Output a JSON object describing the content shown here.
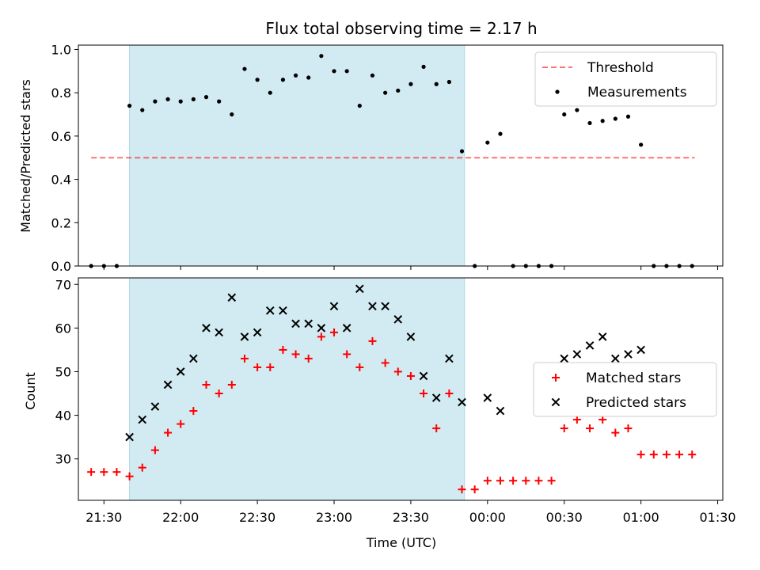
{
  "title": "Flux total observing time = 2.17 h",
  "colors": {
    "shade": "#add8e6",
    "threshold": "#ff0000",
    "matched": "#ff0000",
    "predicted": "#000000",
    "measurement": "#000000"
  },
  "chart_data": [
    {
      "type": "scatter",
      "panel": "top",
      "ylabel": "Matched/Predicted stars",
      "xlabel": "",
      "xlim": [
        "21:20",
        "01:32"
      ],
      "ylim": [
        0,
        1.02
      ],
      "yticks": [
        "0.0",
        "0.2",
        "0.4",
        "0.6",
        "0.8",
        "1.0"
      ],
      "yticks_values": [
        0,
        0.2,
        0.4,
        0.6,
        0.8,
        1.0
      ],
      "shaded_interval": [
        "21:40",
        "23:51"
      ],
      "legend_position": "top-right",
      "legend": [
        "Threshold",
        "Measurements"
      ],
      "threshold": {
        "name": "Threshold",
        "y": 0.5,
        "x_start": "21:25",
        "x_end": "01:21",
        "style": "dashed"
      },
      "series": [
        {
          "name": "Measurements",
          "points": [
            [
              "21:25",
              0.0
            ],
            [
              "21:30",
              0.0
            ],
            [
              "21:35",
              0.0
            ],
            [
              "21:40",
              0.74
            ],
            [
              "21:45",
              0.72
            ],
            [
              "21:50",
              0.76
            ],
            [
              "21:55",
              0.77
            ],
            [
              "22:00",
              0.76
            ],
            [
              "22:05",
              0.77
            ],
            [
              "22:10",
              0.78
            ],
            [
              "22:15",
              0.76
            ],
            [
              "22:20",
              0.7
            ],
            [
              "22:25",
              0.91
            ],
            [
              "22:30",
              0.86
            ],
            [
              "22:35",
              0.8
            ],
            [
              "22:40",
              0.86
            ],
            [
              "22:45",
              0.88
            ],
            [
              "22:50",
              0.87
            ],
            [
              "22:55",
              0.97
            ],
            [
              "23:00",
              0.9
            ],
            [
              "23:05",
              0.9
            ],
            [
              "23:10",
              0.74
            ],
            [
              "23:15",
              0.88
            ],
            [
              "23:20",
              0.8
            ],
            [
              "23:25",
              0.81
            ],
            [
              "23:30",
              0.84
            ],
            [
              "23:35",
              0.92
            ],
            [
              "23:40",
              0.84
            ],
            [
              "23:45",
              0.85
            ],
            [
              "23:50",
              0.53
            ],
            [
              "23:55",
              0.0
            ],
            [
              "00:00",
              0.57
            ],
            [
              "00:05",
              0.61
            ],
            [
              "00:10",
              0.0
            ],
            [
              "00:15",
              0.0
            ],
            [
              "00:20",
              0.0
            ],
            [
              "00:25",
              0.0
            ],
            [
              "00:30",
              0.7
            ],
            [
              "00:35",
              0.72
            ],
            [
              "00:40",
              0.66
            ],
            [
              "00:45",
              0.67
            ],
            [
              "00:50",
              0.68
            ],
            [
              "00:55",
              0.69
            ],
            [
              "01:00",
              0.56
            ],
            [
              "01:05",
              0.0
            ],
            [
              "01:10",
              0.0
            ],
            [
              "01:15",
              0.0
            ],
            [
              "01:20",
              0.0
            ]
          ]
        }
      ]
    },
    {
      "type": "scatter",
      "panel": "bottom",
      "ylabel": "Count",
      "xlabel": "Time (UTC)",
      "xlim": [
        "21:20",
        "01:32"
      ],
      "ylim": [
        20.5,
        71.5
      ],
      "yticks": [
        "30",
        "40",
        "50",
        "60",
        "70"
      ],
      "yticks_values": [
        30,
        40,
        50,
        60,
        70
      ],
      "xticks": [
        "21:30",
        "22:00",
        "22:30",
        "23:00",
        "23:30",
        "00:00",
        "00:30",
        "01:00",
        "01:30"
      ],
      "shaded_interval": [
        "21:40",
        "23:51"
      ],
      "legend_position": "center-right",
      "legend": [
        "Matched stars",
        "Predicted stars"
      ],
      "series": [
        {
          "name": "Matched stars",
          "marker": "+",
          "points": [
            [
              "21:25",
              27
            ],
            [
              "21:30",
              27
            ],
            [
              "21:35",
              27
            ],
            [
              "21:40",
              26
            ],
            [
              "21:45",
              28
            ],
            [
              "21:50",
              32
            ],
            [
              "21:55",
              36
            ],
            [
              "22:00",
              38
            ],
            [
              "22:05",
              41
            ],
            [
              "22:10",
              47
            ],
            [
              "22:15",
              45
            ],
            [
              "22:20",
              47
            ],
            [
              "22:25",
              53
            ],
            [
              "22:30",
              51
            ],
            [
              "22:35",
              51
            ],
            [
              "22:40",
              55
            ],
            [
              "22:45",
              54
            ],
            [
              "22:50",
              53
            ],
            [
              "22:55",
              58
            ],
            [
              "23:00",
              59
            ],
            [
              "23:05",
              54
            ],
            [
              "23:10",
              51
            ],
            [
              "23:15",
              57
            ],
            [
              "23:20",
              52
            ],
            [
              "23:25",
              50
            ],
            [
              "23:30",
              49
            ],
            [
              "23:35",
              45
            ],
            [
              "23:40",
              37
            ],
            [
              "23:45",
              45
            ],
            [
              "23:50",
              23
            ],
            [
              "23:55",
              23
            ],
            [
              "00:00",
              25
            ],
            [
              "00:05",
              25
            ],
            [
              "00:10",
              25
            ],
            [
              "00:15",
              25
            ],
            [
              "00:20",
              25
            ],
            [
              "00:25",
              25
            ],
            [
              "00:30",
              37
            ],
            [
              "00:35",
              39
            ],
            [
              "00:40",
              37
            ],
            [
              "00:45",
              39
            ],
            [
              "00:50",
              36
            ],
            [
              "00:55",
              37
            ],
            [
              "01:00",
              31
            ],
            [
              "01:05",
              31
            ],
            [
              "01:10",
              31
            ],
            [
              "01:15",
              31
            ],
            [
              "01:20",
              31
            ]
          ]
        },
        {
          "name": "Predicted stars",
          "marker": "x",
          "points": [
            [
              "21:40",
              35
            ],
            [
              "21:45",
              39
            ],
            [
              "21:50",
              42
            ],
            [
              "21:55",
              47
            ],
            [
              "22:00",
              50
            ],
            [
              "22:05",
              53
            ],
            [
              "22:10",
              60
            ],
            [
              "22:15",
              59
            ],
            [
              "22:20",
              67
            ],
            [
              "22:25",
              58
            ],
            [
              "22:30",
              59
            ],
            [
              "22:35",
              64
            ],
            [
              "22:40",
              64
            ],
            [
              "22:45",
              61
            ],
            [
              "22:50",
              61
            ],
            [
              "22:55",
              60
            ],
            [
              "23:00",
              65
            ],
            [
              "23:05",
              60
            ],
            [
              "23:10",
              69
            ],
            [
              "23:15",
              65
            ],
            [
              "23:20",
              65
            ],
            [
              "23:25",
              62
            ],
            [
              "23:30",
              58
            ],
            [
              "23:35",
              49
            ],
            [
              "23:40",
              44
            ],
            [
              "23:45",
              53
            ],
            [
              "23:50",
              43
            ],
            [
              "00:00",
              44
            ],
            [
              "00:05",
              41
            ],
            [
              "00:30",
              53
            ],
            [
              "00:35",
              54
            ],
            [
              "00:40",
              56
            ],
            [
              "00:45",
              58
            ],
            [
              "00:50",
              53
            ],
            [
              "00:55",
              54
            ],
            [
              "01:00",
              55
            ]
          ]
        }
      ]
    }
  ]
}
